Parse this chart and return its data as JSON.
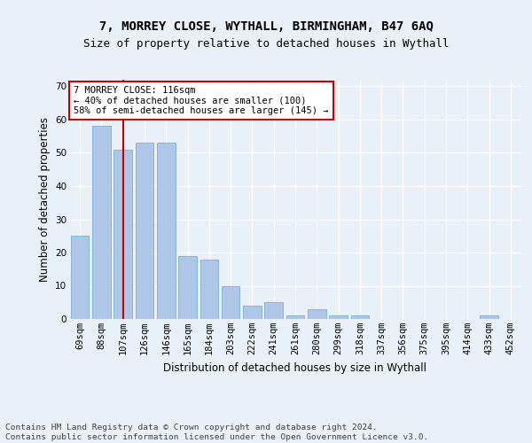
{
  "title1": "7, MORREY CLOSE, WYTHALL, BIRMINGHAM, B47 6AQ",
  "title2": "Size of property relative to detached houses in Wythall",
  "xlabel": "Distribution of detached houses by size in Wythall",
  "ylabel": "Number of detached properties",
  "categories": [
    "69sqm",
    "88sqm",
    "107sqm",
    "126sqm",
    "146sqm",
    "165sqm",
    "184sqm",
    "203sqm",
    "222sqm",
    "241sqm",
    "261sqm",
    "280sqm",
    "299sqm",
    "318sqm",
    "337sqm",
    "356sqm",
    "375sqm",
    "395sqm",
    "414sqm",
    "433sqm",
    "452sqm"
  ],
  "values": [
    25,
    58,
    51,
    53,
    53,
    19,
    18,
    10,
    4,
    5,
    1,
    3,
    1,
    1,
    0,
    0,
    0,
    0,
    0,
    1,
    0
  ],
  "bar_color": "#aec6e8",
  "bar_edgecolor": "#7aafd4",
  "vline_x": 2,
  "vline_color": "#cc0000",
  "annotation_text": "7 MORREY CLOSE: 116sqm\n← 40% of detached houses are smaller (100)\n58% of semi-detached houses are larger (145) →",
  "annotation_box_color": "#ffffff",
  "annotation_box_edgecolor": "#cc0000",
  "ylim": [
    0,
    72
  ],
  "yticks": [
    0,
    10,
    20,
    30,
    40,
    50,
    60,
    70
  ],
  "footer": "Contains HM Land Registry data © Crown copyright and database right 2024.\nContains public sector information licensed under the Open Government Licence v3.0.",
  "bg_color": "#eaf0f8",
  "plot_bg_color": "#eaf0f8",
  "grid_color": "#ffffff",
  "title_fontsize": 10,
  "subtitle_fontsize": 9,
  "axis_label_fontsize": 8.5,
  "tick_fontsize": 7.5,
  "footer_fontsize": 6.8
}
